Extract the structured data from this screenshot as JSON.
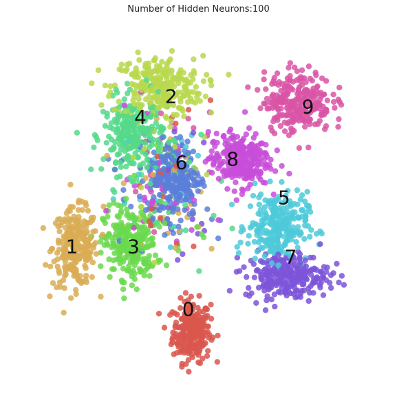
{
  "chart_data": {
    "type": "scatter",
    "title": "Number of Hidden Neurons:100",
    "xlabel": "",
    "ylabel": "",
    "axes_visible": false,
    "grid": false,
    "legend": "none",
    "xlim": [
      0,
      100
    ],
    "ylim": [
      0,
      100
    ],
    "series": [
      {
        "label": "0",
        "color": "#d9574e",
        "label_pos": [
          47,
          20
        ],
        "center": [
          48,
          14
        ],
        "spread": [
          5,
          8
        ]
      },
      {
        "label": "1",
        "color": "#d9ad55",
        "label_pos": [
          13,
          38
        ],
        "center": [
          14,
          38
        ],
        "spread": [
          6,
          10
        ]
      },
      {
        "label": "2",
        "color": "#b8d84e",
        "label_pos": [
          42,
          81
        ],
        "center": [
          38,
          84
        ],
        "spread": [
          12,
          8
        ]
      },
      {
        "label": "3",
        "color": "#6ad94e",
        "label_pos": [
          31,
          38
        ],
        "center": [
          30,
          39
        ],
        "spread": [
          7,
          9
        ]
      },
      {
        "label": "4",
        "color": "#55d98a",
        "label_pos": [
          33,
          75
        ],
        "center": [
          31,
          70
        ],
        "spread": [
          8,
          10
        ]
      },
      {
        "label": "5",
        "color": "#4ecad9",
        "label_pos": [
          75,
          52
        ],
        "center": [
          73,
          44
        ],
        "spread": [
          8,
          9
        ]
      },
      {
        "label": "6",
        "color": "#5a7fd9",
        "label_pos": [
          45,
          62
        ],
        "center": [
          43,
          58
        ],
        "spread": [
          7,
          10
        ]
      },
      {
        "label": "7",
        "color": "#7c55d9",
        "label_pos": [
          77,
          35
        ],
        "center": [
          76,
          30
        ],
        "spread": [
          11,
          6
        ]
      },
      {
        "label": "8",
        "color": "#c84ed9",
        "label_pos": [
          60,
          63
        ],
        "center": [
          62,
          63
        ],
        "spread": [
          8,
          7
        ]
      },
      {
        "label": "9",
        "color": "#d955a6",
        "label_pos": [
          82,
          78
        ],
        "center": [
          79,
          80
        ],
        "spread": [
          9,
          8
        ]
      }
    ]
  }
}
